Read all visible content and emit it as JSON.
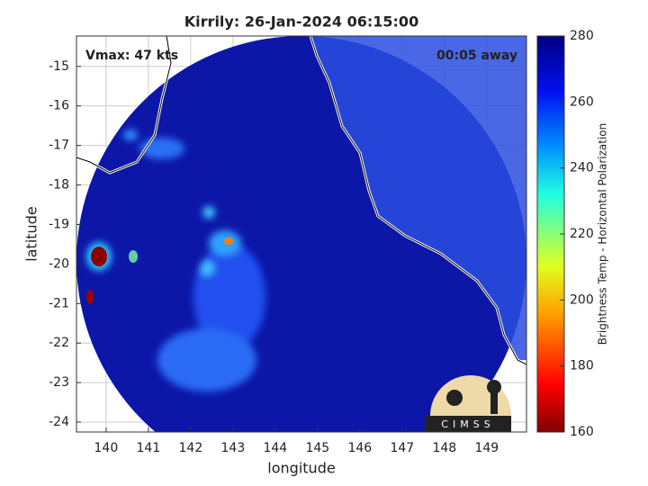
{
  "chart_data": {
    "type": "map",
    "title": "Kirrily: 26-Jan-2024 06:15:00",
    "annotations": [
      "Vmax: 47 kts",
      "00:05 away"
    ],
    "xlabel": "longitude",
    "ylabel": "latitude",
    "xlim": [
      139.3,
      149.94
    ],
    "ylim": [
      -24.25,
      -14.23
    ],
    "xticks": [
      140,
      141,
      142,
      143,
      144,
      145,
      146,
      147,
      148,
      149
    ],
    "yticks": [
      -24,
      -23,
      -22,
      -21,
      -20,
      -19,
      -18,
      -17,
      -16,
      -15
    ],
    "grid": true,
    "colorbar": {
      "label": "Brightness Temp - Horizontal Polarization",
      "lim": [
        160,
        280
      ],
      "ticks": [
        160,
        180,
        200,
        220,
        240,
        260,
        280
      ]
    },
    "logo_text": "CIMSS"
  }
}
